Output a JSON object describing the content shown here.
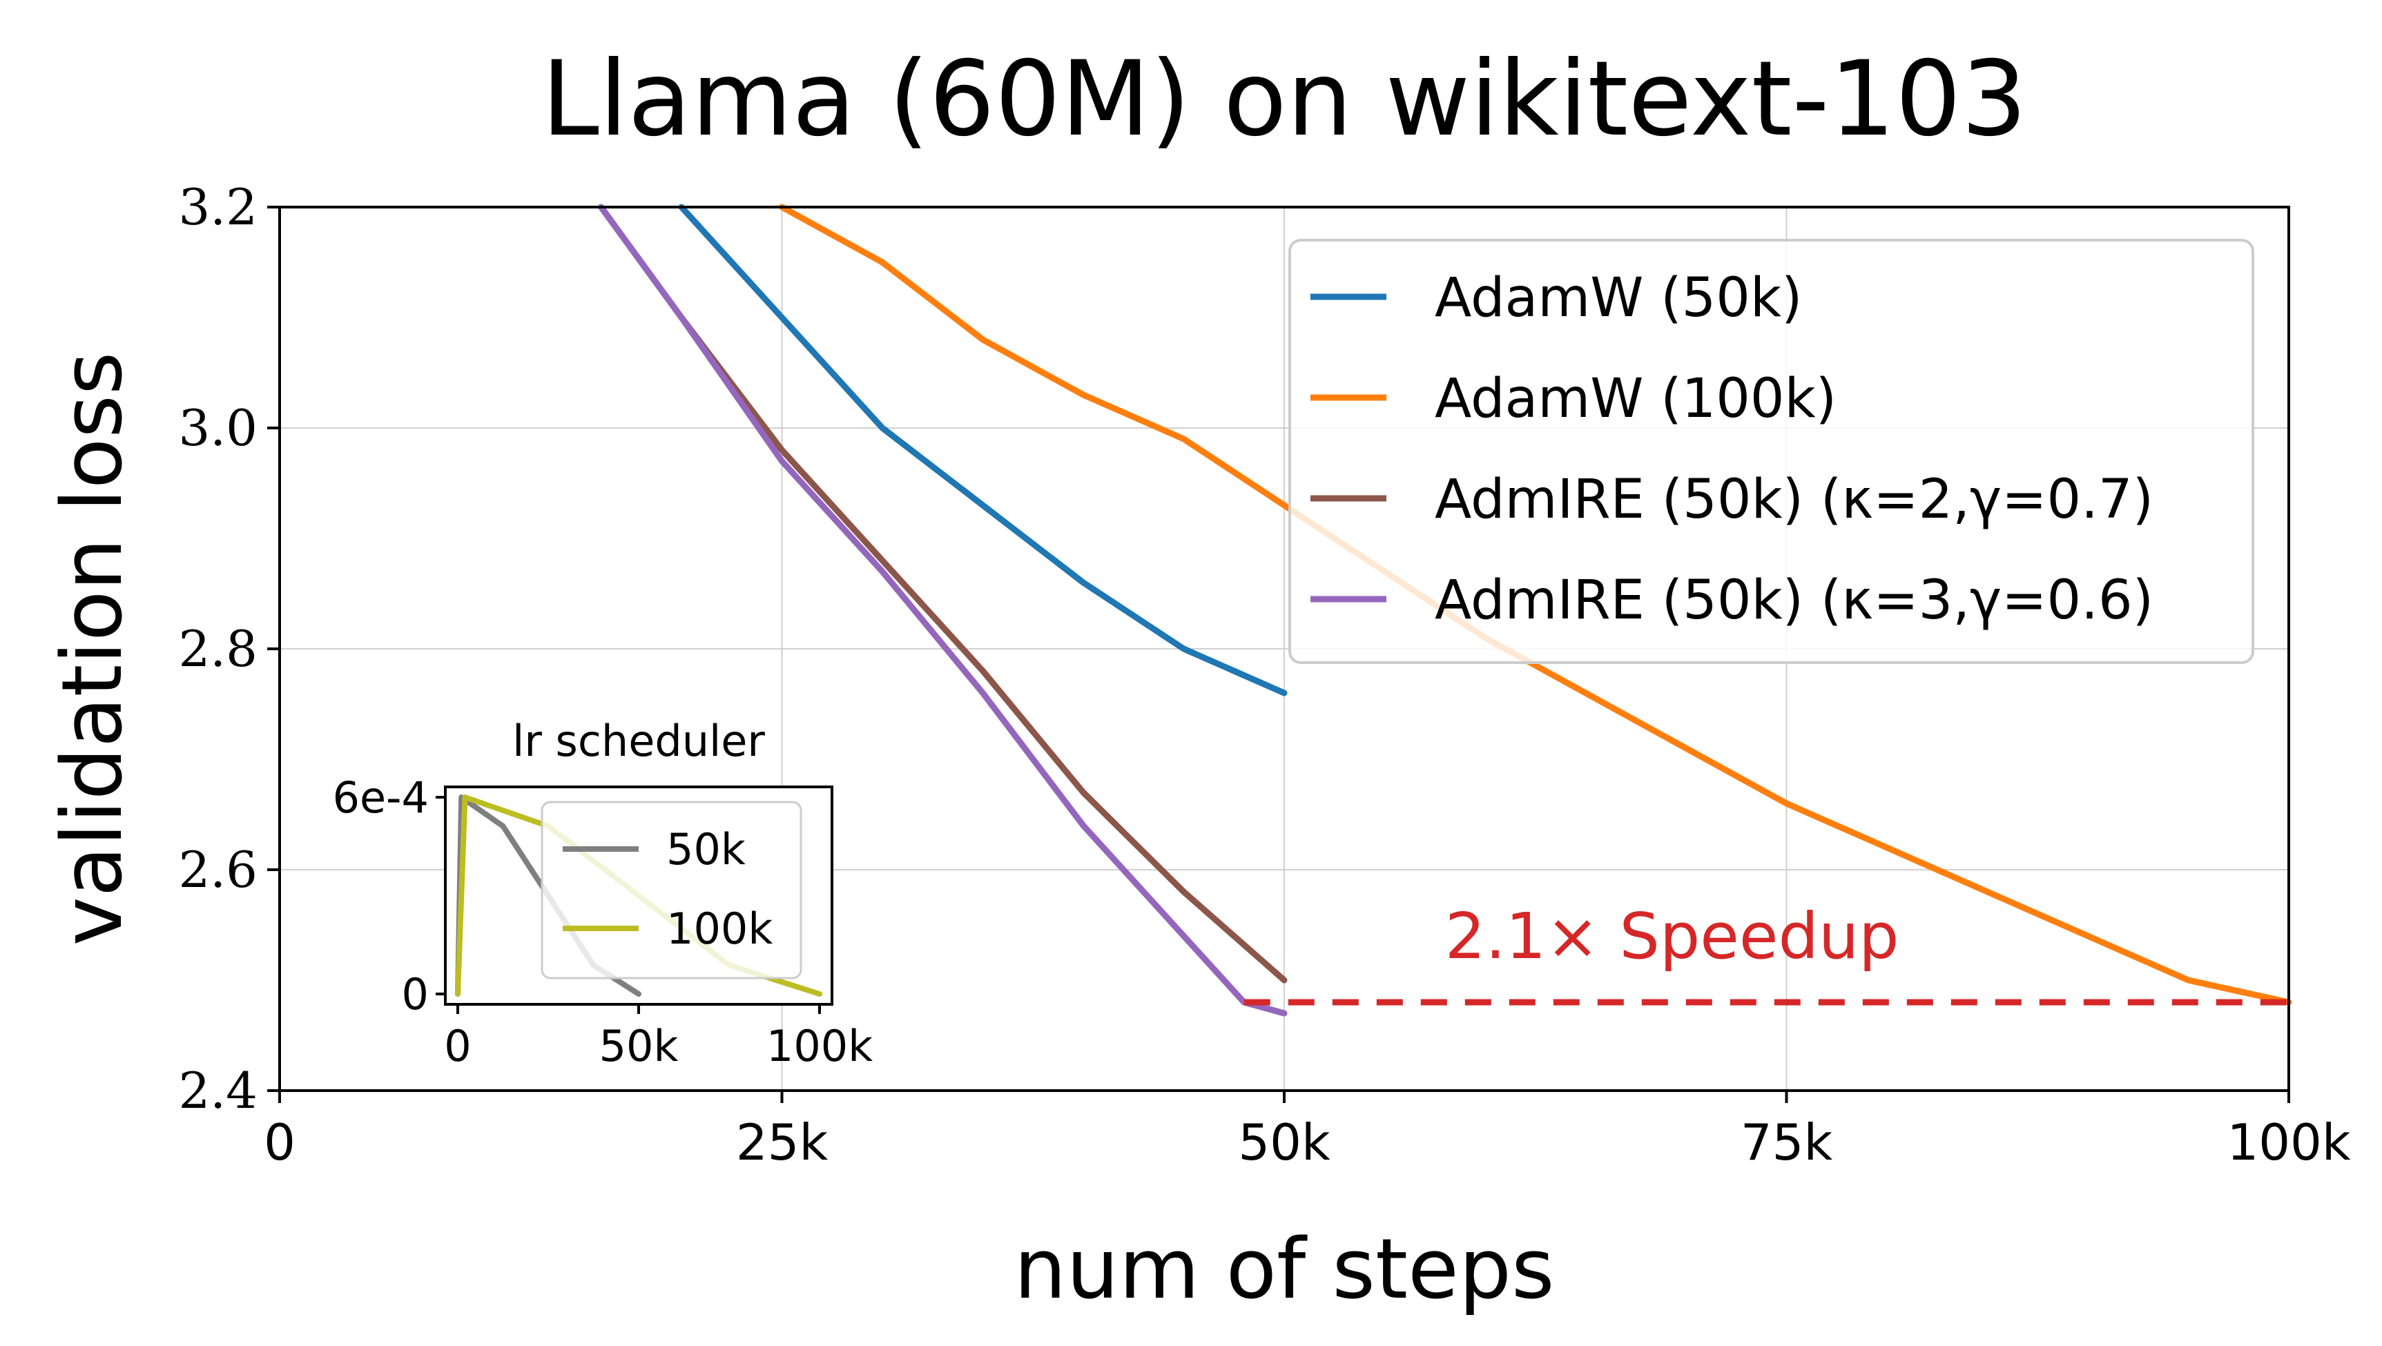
{
  "chart_data": {
    "type": "line",
    "title": "Llama (60M) on wikitext-103",
    "xlabel": "num of steps",
    "ylabel": "validation loss",
    "xlim": [
      0,
      100000
    ],
    "ylim": [
      2.4,
      3.2
    ],
    "x_ticks": [
      0,
      25000,
      50000,
      75000,
      100000
    ],
    "x_tick_labels": [
      "0",
      "25k",
      "50k",
      "75k",
      "100k"
    ],
    "y_ticks": [
      2.4,
      2.6,
      2.8,
      3.0,
      3.2
    ],
    "y_tick_labels": [
      "2.4",
      "2.6",
      "2.8",
      "3.0",
      "3.2"
    ],
    "grid": true,
    "legend_position": "top-right",
    "series": [
      {
        "name": "AdamW (50k)",
        "color": "#1f77b4",
        "x": [
          20000,
          25000,
          30000,
          35000,
          40000,
          45000,
          50000
        ],
        "y": [
          3.2,
          3.1,
          3.0,
          2.93,
          2.86,
          2.8,
          2.76
        ]
      },
      {
        "name": "AdamW (100k)",
        "color": "#ff7f0e",
        "x": [
          25000,
          30000,
          35000,
          40000,
          45000,
          50000,
          55000,
          60000,
          65000,
          70000,
          75000,
          80000,
          85000,
          90000,
          95000,
          100000
        ],
        "y": [
          3.2,
          3.15,
          3.08,
          3.03,
          2.99,
          2.93,
          2.87,
          2.81,
          2.76,
          2.71,
          2.66,
          2.62,
          2.58,
          2.54,
          2.5,
          2.48
        ]
      },
      {
        "name": "AdmIRE (50k) (κ=2,γ=0.7)",
        "color": "#8c564b",
        "x": [
          16000,
          20000,
          25000,
          30000,
          35000,
          40000,
          45000,
          50000
        ],
        "y": [
          3.2,
          3.1,
          2.98,
          2.88,
          2.78,
          2.67,
          2.58,
          2.5
        ]
      },
      {
        "name": "AdmIRE (50k) (κ=3,γ=0.6)",
        "color": "#9467bd",
        "x": [
          16000,
          20000,
          25000,
          30000,
          35000,
          40000,
          45000,
          48000,
          50000
        ],
        "y": [
          3.2,
          3.1,
          2.97,
          2.87,
          2.76,
          2.64,
          2.54,
          2.48,
          2.47
        ]
      }
    ],
    "annotations": [
      {
        "text": "2.1× Speedup",
        "x": 58000,
        "y": 2.52,
        "color": "#d62728"
      }
    ],
    "reference_line": {
      "y": 2.48,
      "x_start": 48000,
      "x_end": 100000,
      "style": "dashed",
      "color": "#d62728"
    },
    "inset": {
      "title": "lr scheduler",
      "xlim": [
        0,
        100000
      ],
      "ylim": [
        0,
        0.0006
      ],
      "x_ticks": [
        0,
        50000,
        100000
      ],
      "x_tick_labels": [
        "0",
        "50k",
        "100k"
      ],
      "y_ticks": [
        0,
        0.0006
      ],
      "y_tick_labels": [
        "0",
        "6e-4"
      ],
      "series": [
        {
          "name": "50k",
          "color": "#7f7f7f",
          "x": [
            0,
            1000,
            12500,
            25000,
            37500,
            50000
          ],
          "y": [
            0,
            0.0006,
            0.000512,
            0.0003,
            8.8e-05,
            0
          ]
        },
        {
          "name": "100k",
          "color": "#bcbd22",
          "x": [
            0,
            2000,
            25000,
            50000,
            75000,
            100000
          ],
          "y": [
            0,
            0.0006,
            0.000512,
            0.0003,
            8.8e-05,
            0
          ]
        }
      ]
    }
  },
  "colors": {
    "axes": "#000000",
    "grid": "#d0d0d0",
    "legend_border": "#cccccc"
  }
}
